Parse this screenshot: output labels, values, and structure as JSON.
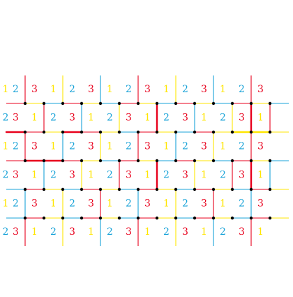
{
  "colors": {
    "c1": "#ffe600",
    "c2": "#19a3d8",
    "c3": "#e8001c",
    "node": "#000000",
    "background": "#ffffff"
  },
  "lattice": {
    "columns": 14,
    "rows": 4,
    "row_pattern_offsets": [
      0,
      2,
      0,
      2
    ],
    "label_cycle": [
      "2",
      "3",
      "1"
    ],
    "heavy_segments": [
      {
        "from": [
          0,
          1
        ],
        "to": [
          1,
          1
        ],
        "color": "c3"
      },
      {
        "from": [
          1,
          2
        ],
        "to": [
          3,
          2
        ],
        "color": "c3"
      },
      {
        "from": [
          3,
          1
        ],
        "to": [
          4,
          1
        ],
        "color": "c3"
      },
      {
        "from": [
          8,
          0
        ],
        "to": [
          8,
          1
        ],
        "color": "c3"
      },
      {
        "from": [
          8,
          2
        ],
        "to": [
          8,
          3
        ],
        "color": "c3"
      },
      {
        "from": [
          13,
          0
        ],
        "to": [
          13,
          1
        ],
        "color": "c3"
      },
      {
        "from": [
          13,
          2
        ],
        "to": [
          13,
          3
        ],
        "color": "c3"
      },
      {
        "from": [
          12,
          1
        ],
        "to": [
          14,
          1
        ],
        "color": "c1"
      }
    ]
  }
}
